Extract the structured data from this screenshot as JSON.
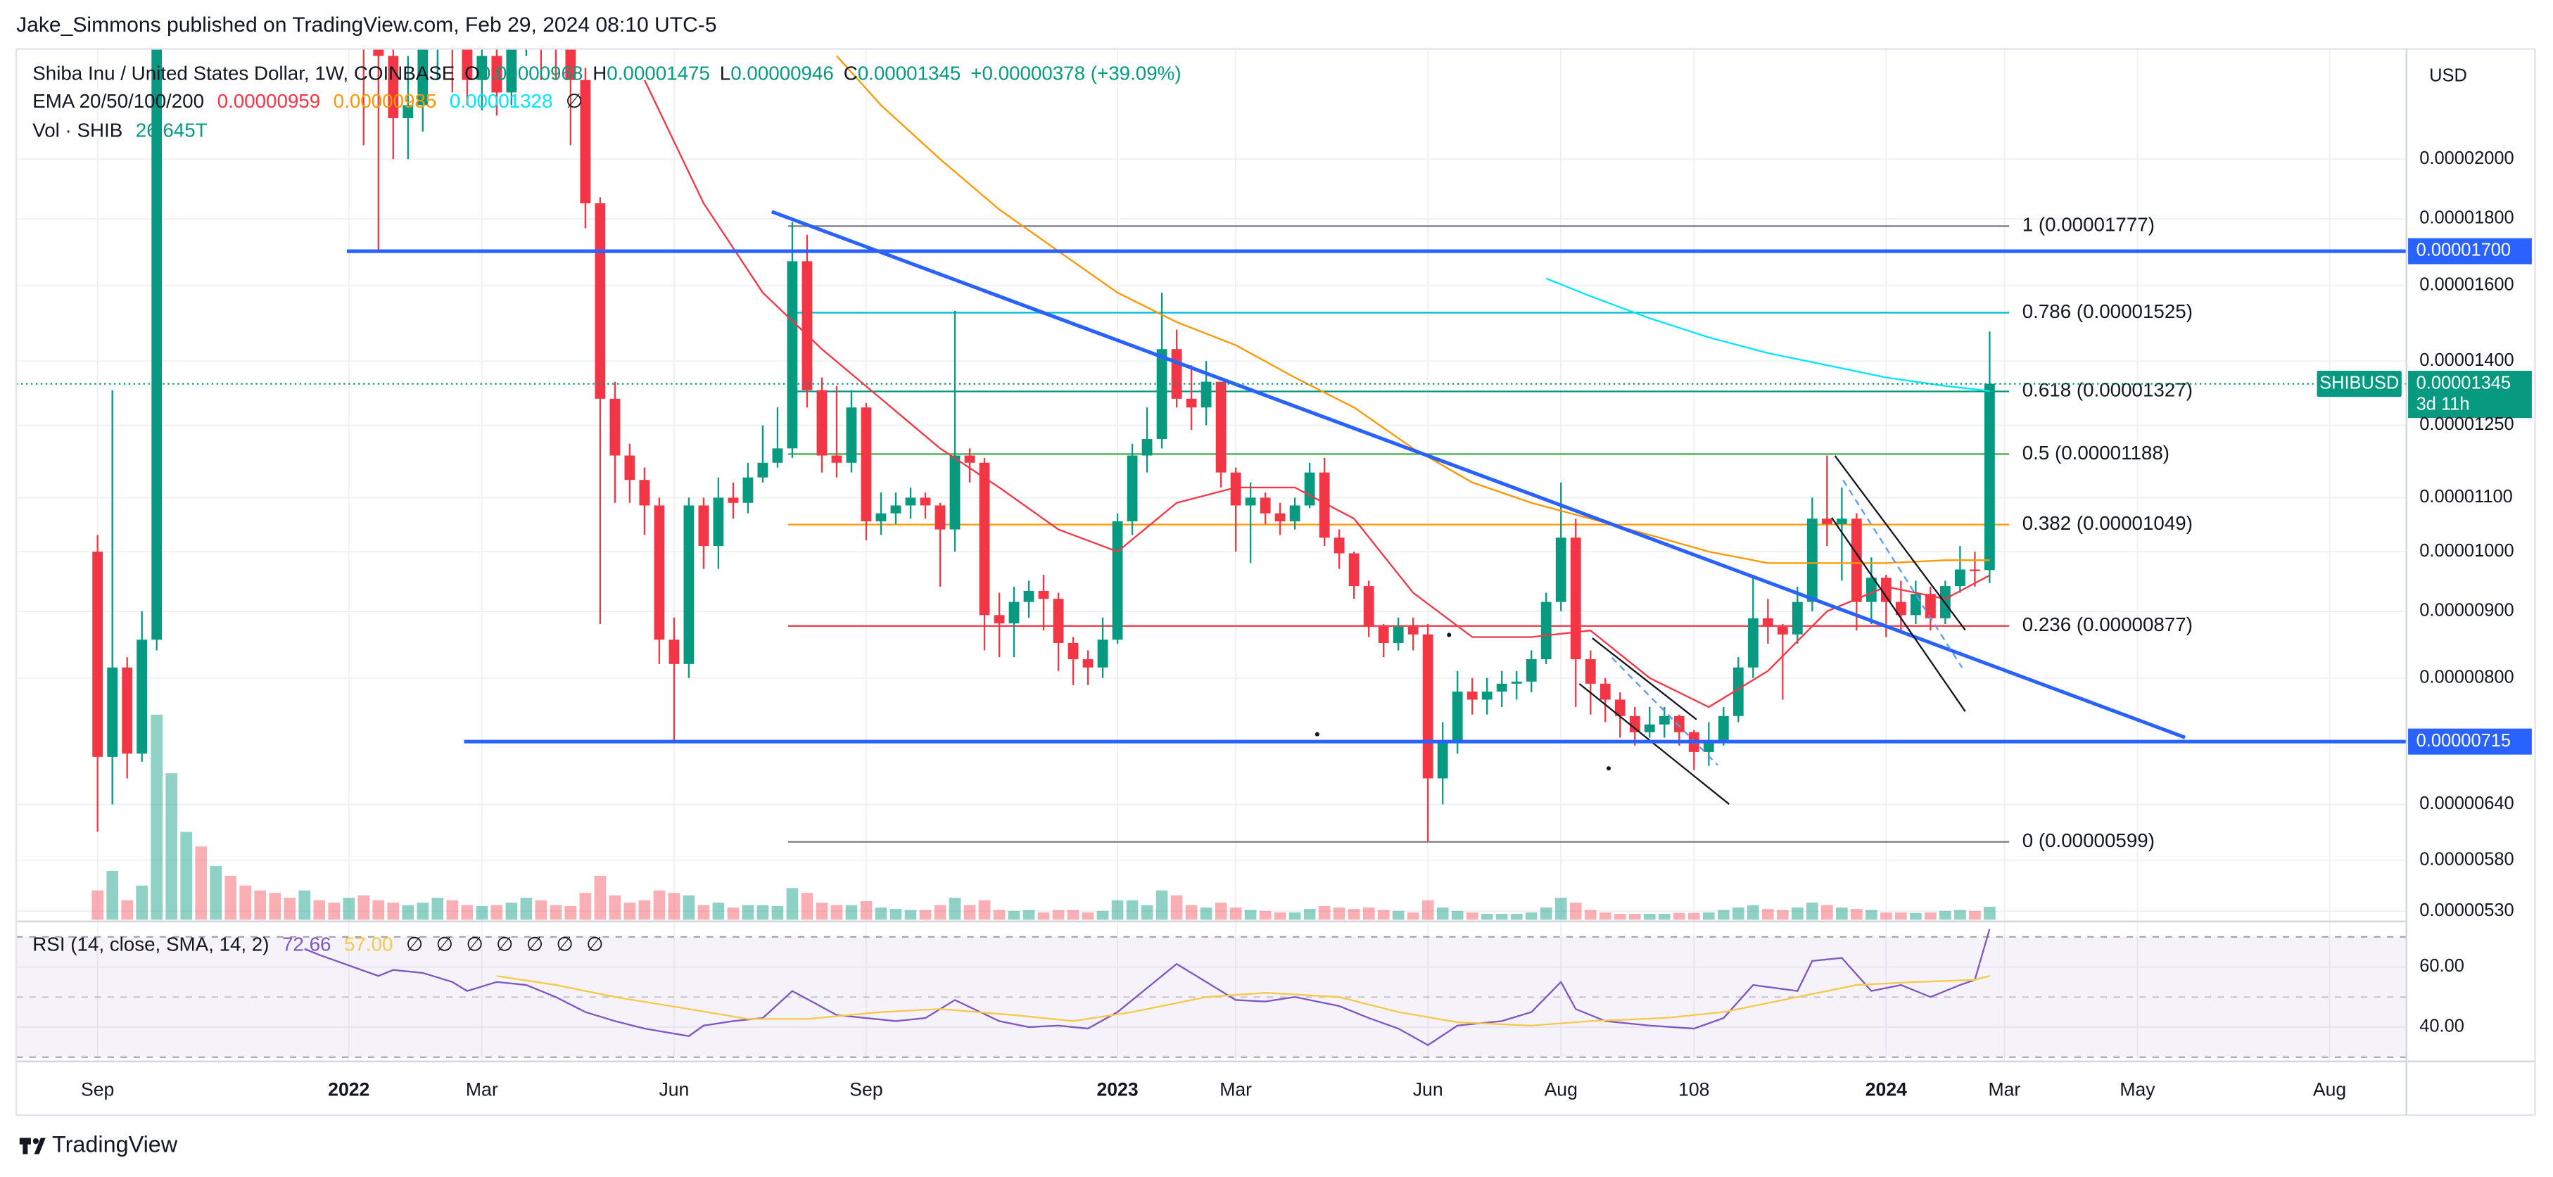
{
  "header": {
    "published": "Jake_Simmons published on TradingView.com, Feb 29, 2024 08:10 UTC-5"
  },
  "chart_data": {
    "type": "candlestick",
    "symbol": "Shiba Inu / United States Dollar, 1W, COINBASE",
    "ohlc_legend": [
      {
        "key": "O",
        "value": "0.00000968"
      },
      {
        "key": "H",
        "value": "0.00001475"
      },
      {
        "key": "L",
        "value": "0.00000946"
      },
      {
        "key": "C",
        "value": "0.00001345"
      }
    ],
    "change": "+0.00000378 (+39.09%)",
    "currency": "USD",
    "up_color": "#089981",
    "down_color": "#f23645",
    "open": 1e-05,
    "close": [
      6.96e-06,
      8.15e-06,
      7e-06,
      8.56e-06,
      2.8e-05,
      4.2e-05,
      5.6e-05,
      4.5e-05,
      5.2e-05,
      4.8e-05,
      4e-05,
      3.8e-05,
      3.6e-05,
      3.3e-05,
      3.4e-05,
      3.2e-05,
      2.8e-05,
      3e-05,
      2.7e-05,
      2.4e-05,
      2.15e-05,
      2.2e-05,
      2.5e-05,
      2.8e-05,
      2.6e-05,
      2.3e-05,
      2.4e-05,
      2.25e-05,
      2.5e-05,
      2.7e-05,
      2.6e-05,
      2.45e-05,
      2.3e-05,
      1.85e-05,
      1.31e-05,
      1.185e-05,
      1.135e-05,
      1.085e-05,
      8.56e-06,
      8.2e-06,
      1.085e-05,
      1.01e-05,
      1.1e-05,
      1.09e-05,
      1.14e-05,
      1.17e-05,
      1.2e-05,
      1.67e-05,
      1.33e-05,
      1.185e-05,
      1.17e-05,
      1.29e-05,
      1.055e-05,
      1.07e-05,
      1.085e-05,
      1.1e-05,
      1.085e-05,
      1.04e-05,
      1.185e-05,
      1.17e-05,
      8.94e-06,
      8.81e-06,
      9.15e-06,
      9.33e-06,
      9.2e-06,
      8.51e-06,
      8.27e-06,
      8.15e-06,
      8.56e-06,
      1.055e-05,
      1.185e-05,
      1.22e-05,
      1.43e-05,
      1.31e-05,
      1.29e-05,
      1.35e-05,
      1.15e-05,
      1.085e-05,
      1.1e-05,
      1.07e-05,
      1.055e-05,
      1.085e-05,
      1.15e-05,
      1.025e-05,
      9.97e-06,
      9.41e-06,
      8.76e-06,
      8.51e-06,
      8.76e-06,
      8.64e-06,
      6.7e-06,
      7.16e-06,
      7.81e-06,
      7.7e-06,
      7.81e-06,
      7.92e-06,
      7.95e-06,
      8.27e-06,
      9.15e-06,
      1.025e-05,
      8.27e-06,
      7.92e-06,
      7.7e-06,
      7.48e-06,
      7.27e-06,
      7.37e-06,
      7.48e-06,
      7.27e-06,
      7.02e-06,
      7.16e-06,
      7.48e-06,
      8.15e-06,
      8.89e-06,
      8.76e-06,
      8.64e-06,
      9.15e-06,
      1.06e-05,
      1.05e-05,
      1.06e-05,
      9.15e-06,
      9.55e-06,
      9.15e-06,
      8.94e-06,
      9.28e-06,
      8.89e-06,
      9.41e-06,
      9.69e-06,
      9.68e-06,
      1.345e-05
    ],
    "high": [
      1.03e-05,
      1.33e-05,
      8.3e-06,
      9e-06,
      4e-05,
      8.8e-05,
      6e-05,
      5.8e-05,
      5.6e-05,
      5.5e-05,
      4.9e-05,
      4.3e-05,
      4e-05,
      3.8e-05,
      3.7e-05,
      3.6e-05,
      3.3e-05,
      3.3e-05,
      3.1e-05,
      2.8e-05,
      2.5e-05,
      2.4e-05,
      2.7e-05,
      3.1e-05,
      2.9e-05,
      2.7e-05,
      2.6e-05,
      2.5e-05,
      2.6e-05,
      3e-05,
      2.8e-05,
      2.7e-05,
      2.5e-05,
      2.35e-05,
      1.87e-05,
      1.35e-05,
      1.21e-05,
      1.16e-05,
      1.1e-05,
      8.9e-06,
      1.1e-05,
      1.1e-05,
      1.14e-05,
      1.13e-05,
      1.17e-05,
      1.25e-05,
      1.29e-05,
      1.79e-05,
      1.75e-05,
      1.36e-05,
      1.34e-05,
      1.33e-05,
      1.3e-05,
      1.11e-05,
      1.11e-05,
      1.12e-05,
      1.11e-05,
      1.09e-05,
      1.53e-05,
      1.2e-05,
      1.18e-05,
      9.3e-06,
      9.4e-06,
      9.5e-06,
      9.6e-06,
      9.3e-06,
      8.6e-06,
      8.4e-06,
      8.9e-06,
      1.07e-05,
      1.21e-05,
      1.29e-05,
      1.58e-05,
      1.48e-05,
      1.39e-05,
      1.4e-05,
      1.34e-05,
      1.16e-05,
      1.13e-05,
      1.11e-05,
      1.09e-05,
      1.1e-05,
      1.17e-05,
      1.18e-05,
      1.04e-05,
      1e-05,
      9.5e-06,
      8.8e-06,
      8.9e-06,
      8.9e-06,
      8.8e-06,
      7.4e-06,
      8.1e-06,
      8e-06,
      8e-06,
      8.1e-06,
      8.1e-06,
      8.4e-06,
      9.3e-06,
      1.13e-05,
      1.06e-05,
      8.4e-06,
      8e-06,
      7.8e-06,
      7.6e-06,
      7.6e-06,
      7.6e-06,
      7.5e-06,
      7.3e-06,
      7.4e-06,
      7.6e-06,
      8.3e-06,
      9.6e-06,
      9.2e-06,
      8.8e-06,
      9.4e-06,
      1.1e-05,
      1.185e-05,
      1.12e-05,
      1.07e-05,
      9.9e-06,
      9.6e-06,
      9.5e-06,
      9.5e-06,
      9.4e-06,
      9.5e-06,
      1.01e-05,
      1e-05,
      1.475e-05
    ],
    "low": [
      6.1e-06,
      6.4e-06,
      6.7e-06,
      6.9e-06,
      8.4e-06,
      2.7e-05,
      3.8e-05,
      4e-05,
      4.2e-05,
      4.4e-05,
      3.8e-05,
      3.5e-05,
      3.2e-05,
      3e-05,
      2.8e-05,
      3e-05,
      2.6e-05,
      2.6e-05,
      2.05e-05,
      1.7e-05,
      2e-05,
      2e-05,
      2.1e-05,
      2.3e-05,
      2.25e-05,
      2.2e-05,
      2.18e-05,
      2.16e-05,
      2.2e-05,
      2.4e-05,
      2.3e-05,
      2.3e-05,
      2.05e-05,
      1.77e-05,
      8.8e-06,
      1.09e-05,
      1.09e-05,
      1.03e-05,
      8.2e-06,
      7.15e-06,
      8e-06,
      9.7e-06,
      9.7e-06,
      1.06e-05,
      1.07e-05,
      1.13e-05,
      1.16e-05,
      1.18e-05,
      1.29e-05,
      1.15e-05,
      1.14e-05,
      1.15e-05,
      1.02e-05,
      1.03e-05,
      1.05e-05,
      1.06e-05,
      1.06e-05,
      9.4e-06,
      1e-05,
      1.13e-05,
      8.4e-06,
      8.3e-06,
      8.3e-06,
      8.9e-06,
      8.7e-06,
      8.1e-06,
      7.9e-06,
      7.9e-06,
      8e-06,
      8.5e-06,
      1.03e-05,
      1.15e-05,
      1.2e-05,
      1.29e-05,
      1.24e-05,
      1.25e-05,
      1.12e-05,
      1e-05,
      9.8e-06,
      1.05e-05,
      1.03e-05,
      1.04e-05,
      1.08e-05,
      1.01e-05,
      9.7e-06,
      9.2e-06,
      8.6e-06,
      8.3e-06,
      8.4e-06,
      8.4e-06,
      5.99e-06,
      6.4e-06,
      7e-06,
      7.5e-06,
      7.5e-06,
      7.6e-06,
      7.7e-06,
      7.8e-06,
      8.2e-06,
      9e-06,
      7.6e-06,
      7.5e-06,
      7.4e-06,
      7.2e-06,
      7.1e-06,
      7.2e-06,
      7.2e-06,
      7.1e-06,
      6.8e-06,
      6.85e-06,
      7.1e-06,
      7.4e-06,
      8e-06,
      8.5e-06,
      7.7e-06,
      8.5e-06,
      9e-06,
      1.01e-05,
      9.5e-06,
      8.7e-06,
      8.8e-06,
      8.6e-06,
      8.7e-06,
      8.8e-06,
      8.7e-06,
      8.8e-06,
      9.3e-06,
      9.4e-06,
      9.46e-06
    ],
    "log_scale": true,
    "xlim": [
      -5.5,
      156.2
    ],
    "xticks": [
      {
        "value": 0,
        "label": "Sep"
      },
      {
        "value": 17,
        "label": "2022"
      },
      {
        "value": 26,
        "label": "Mar"
      },
      {
        "value": 39,
        "label": "Jun"
      },
      {
        "value": 52,
        "label": "Sep"
      },
      {
        "value": 69,
        "label": "2023"
      },
      {
        "value": 77,
        "label": "Mar"
      },
      {
        "value": 90,
        "label": "Jun"
      },
      {
        "value": 99,
        "label": "Aug"
      },
      108,
      {
        "value": 121,
        "label": "2024"
      },
      {
        "value": 129,
        "label": "Mar"
      },
      {
        "value": 138,
        "label": "May"
      },
      {
        "value": 151,
        "label": "Aug"
      }
    ],
    "ylim": [
      5.22e-06,
      2.43e-05
    ],
    "yticks": [
      {
        "value": 2e-05,
        "label": "0.00002000"
      },
      {
        "value": 1.8e-05,
        "label": "0.00001800"
      },
      {
        "value": 1.6e-05,
        "label": "0.00001600"
      },
      {
        "value": 1.4e-05,
        "label": "0.00001400"
      },
      {
        "value": 1.25e-05,
        "label": "0.00001250"
      },
      {
        "value": 1.1e-05,
        "label": "0.00001100"
      },
      {
        "value": 1e-05,
        "label": "0.00001000"
      },
      {
        "value": 9e-06,
        "label": "0.00000900"
      },
      {
        "value": 8e-06,
        "label": "0.00000800"
      },
      {
        "value": 6.4e-06,
        "label": "0.00000640"
      },
      {
        "value": 5.8e-06,
        "label": "0.00000580"
      },
      {
        "value": 5.3e-06,
        "label": "0.00000530"
      }
    ],
    "grid": true,
    "ema": {
      "label": "EMA 20/50/100/200",
      "empty": "∅",
      "series": [
        {
          "color": "#f23645",
          "value_label": "0.00000959",
          "x": [
            37,
            41,
            45,
            49,
            53,
            57,
            61,
            65,
            69,
            73,
            77,
            81,
            85,
            89,
            93,
            97,
            101,
            105,
            109,
            113,
            117,
            121,
            125,
            128
          ],
          "values": [
            2.3e-05,
            1.85e-05,
            1.58e-05,
            1.43e-05,
            1.31e-05,
            1.2e-05,
            1.12e-05,
            1.04e-05,
            1e-05,
            1.09e-05,
            1.12e-05,
            1.12e-05,
            1.06e-05,
            9.3e-06,
            8.6e-06,
            8.6e-06,
            8.7e-06,
            8e-06,
            7.6e-06,
            8.1e-06,
            9e-06,
            9.4e-06,
            9.2e-06,
            9.59e-06
          ]
        },
        {
          "color": "#ff9800",
          "value_label": "0.00000985",
          "x": [
            50,
            53,
            57,
            61,
            65,
            69,
            73,
            77,
            81,
            85,
            89,
            93,
            97,
            101,
            105,
            109,
            113,
            117,
            121,
            125,
            128
          ],
          "values": [
            2.4e-05,
            2.2e-05,
            2e-05,
            1.83e-05,
            1.7e-05,
            1.58e-05,
            1.5e-05,
            1.44e-05,
            1.36e-05,
            1.29e-05,
            1.2e-05,
            1.13e-05,
            1.09e-05,
            1.06e-05,
            1.03e-05,
            1e-05,
            9.8e-06,
            9.8e-06,
            9.8e-06,
            9.85e-06,
            9.85e-06
          ]
        },
        {
          "color": "#00e5ff",
          "value_label": "0.00001328",
          "x": [
            98,
            101,
            105,
            109,
            113,
            117,
            121,
            125,
            128
          ],
          "values": [
            1.62e-05,
            1.57e-05,
            1.51e-05,
            1.46e-05,
            1.42e-05,
            1.39e-05,
            1.36e-05,
            1.34e-05,
            1.328e-05
          ]
        }
      ]
    },
    "volume": {
      "label": "Vol · SHIB",
      "value_label": "26.645T",
      "vlim": [
        0,
        450
      ],
      "values": [
        60,
        100,
        40,
        70,
        420,
        300,
        180,
        150,
        110,
        90,
        70,
        60,
        55,
        45,
        60,
        40,
        35,
        45,
        50,
        40,
        35,
        30,
        35,
        45,
        40,
        30,
        28,
        30,
        35,
        45,
        40,
        30,
        28,
        55,
        90,
        50,
        35,
        40,
        60,
        55,
        50,
        30,
        35,
        25,
        30,
        30,
        28,
        65,
        55,
        35,
        30,
        30,
        38,
        25,
        22,
        20,
        20,
        30,
        45,
        30,
        40,
        20,
        18,
        20,
        15,
        20,
        20,
        15,
        18,
        40,
        40,
        30,
        60,
        50,
        30,
        25,
        35,
        25,
        20,
        18,
        15,
        15,
        22,
        28,
        25,
        22,
        25,
        20,
        18,
        15,
        40,
        25,
        18,
        15,
        12,
        12,
        12,
        15,
        25,
        45,
        35,
        20,
        15,
        12,
        12,
        12,
        12,
        14,
        14,
        15,
        20,
        25,
        30,
        22,
        20,
        25,
        35,
        30,
        25,
        22,
        20,
        15,
        15,
        14,
        15,
        18,
        20,
        18,
        26.645
      ]
    },
    "hlines": [
      {
        "value": 1.7e-05,
        "label": "0.00001700",
        "color": "#2962ff"
      },
      {
        "value": 7.15e-06,
        "label": "0.00000715",
        "color": "#2962ff"
      }
    ],
    "fib": [
      {
        "value": 1.777e-05,
        "label": "1 (0.00001777)",
        "color": "#787b86"
      },
      {
        "value": 1.525e-05,
        "label": "0.786 (0.00001525)",
        "color": "#00bcd4"
      },
      {
        "value": 1.327e-05,
        "label": "0.618 (0.00001327)",
        "color": "#089981"
      },
      {
        "value": 1.188e-05,
        "label": "0.5 (0.00001188)",
        "color": "#4caf50"
      },
      {
        "value": 1.049e-05,
        "label": "0.382 (0.00001049)",
        "color": "#ff9800"
      },
      {
        "value": 8.77e-06,
        "label": "0.236 (0.00000877)",
        "color": "#f23645"
      },
      {
        "value": 5.99e-06,
        "label": "0 (0.00000599)",
        "color": "#787b86"
      }
    ],
    "last_price": {
      "symbol": "SHIBUSD",
      "value": 1.345e-05,
      "label": "0.00001345",
      "countdown": "3d 11h",
      "color": "#089981"
    },
    "rsi": {
      "label": "RSI (14, close, SMA, 14, 2)",
      "empty": [
        "∅",
        "∅",
        "∅",
        "∅",
        "∅",
        "∅",
        "∅"
      ],
      "ylim": [
        28.6,
        74.6
      ],
      "levels": [
        30,
        50,
        70
      ],
      "yticks": [
        {
          "value": 40,
          "label": "40.00"
        },
        {
          "value": 60,
          "label": "60.00"
        }
      ],
      "series": [
        {
          "color": "#7e57c2",
          "value_label": "72.66",
          "x": [
            14,
            15,
            17,
            19,
            20,
            22,
            24,
            25,
            27,
            29,
            31,
            33,
            35,
            37,
            40,
            41,
            43,
            45,
            47,
            50,
            52,
            54,
            56,
            58,
            61,
            63,
            65,
            67,
            69,
            72,
            73,
            75,
            77,
            79,
            81,
            84,
            86,
            88,
            90,
            92,
            95,
            97,
            99,
            100,
            102,
            105,
            108,
            110,
            112,
            115,
            116,
            118,
            120,
            122,
            124,
            126,
            127,
            128
          ],
          "values": [
            66,
            64,
            60.5,
            57,
            59,
            58,
            55,
            52,
            55,
            54,
            50,
            45,
            42,
            39.5,
            37,
            40.5,
            42,
            43,
            52,
            44,
            43,
            42,
            43,
            49,
            42,
            40,
            40.5,
            39.5,
            45,
            57,
            61,
            55,
            49,
            48.5,
            50,
            47,
            43,
            39.5,
            34,
            40.5,
            42,
            45,
            55,
            46,
            42,
            40.5,
            39.5,
            43,
            54,
            52,
            62,
            63,
            52,
            54,
            50,
            54,
            55.7,
            72.66
          ]
        },
        {
          "color": "#f7c948",
          "value_label": "57.00",
          "x": [
            27,
            31,
            35,
            40,
            44,
            48,
            53,
            57,
            62,
            66,
            70,
            75,
            79,
            84,
            88,
            92,
            97,
            101,
            106,
            110,
            115,
            119,
            123,
            127,
            128
          ],
          "values": [
            57,
            54,
            50,
            46,
            42.7,
            42.7,
            45,
            46,
            44,
            42,
            45,
            50,
            51.4,
            50,
            45,
            41.6,
            40.5,
            42,
            43,
            45,
            50,
            54,
            55,
            55.7,
            57
          ]
        }
      ]
    }
  },
  "footer": {
    "brand": "TradingView"
  }
}
